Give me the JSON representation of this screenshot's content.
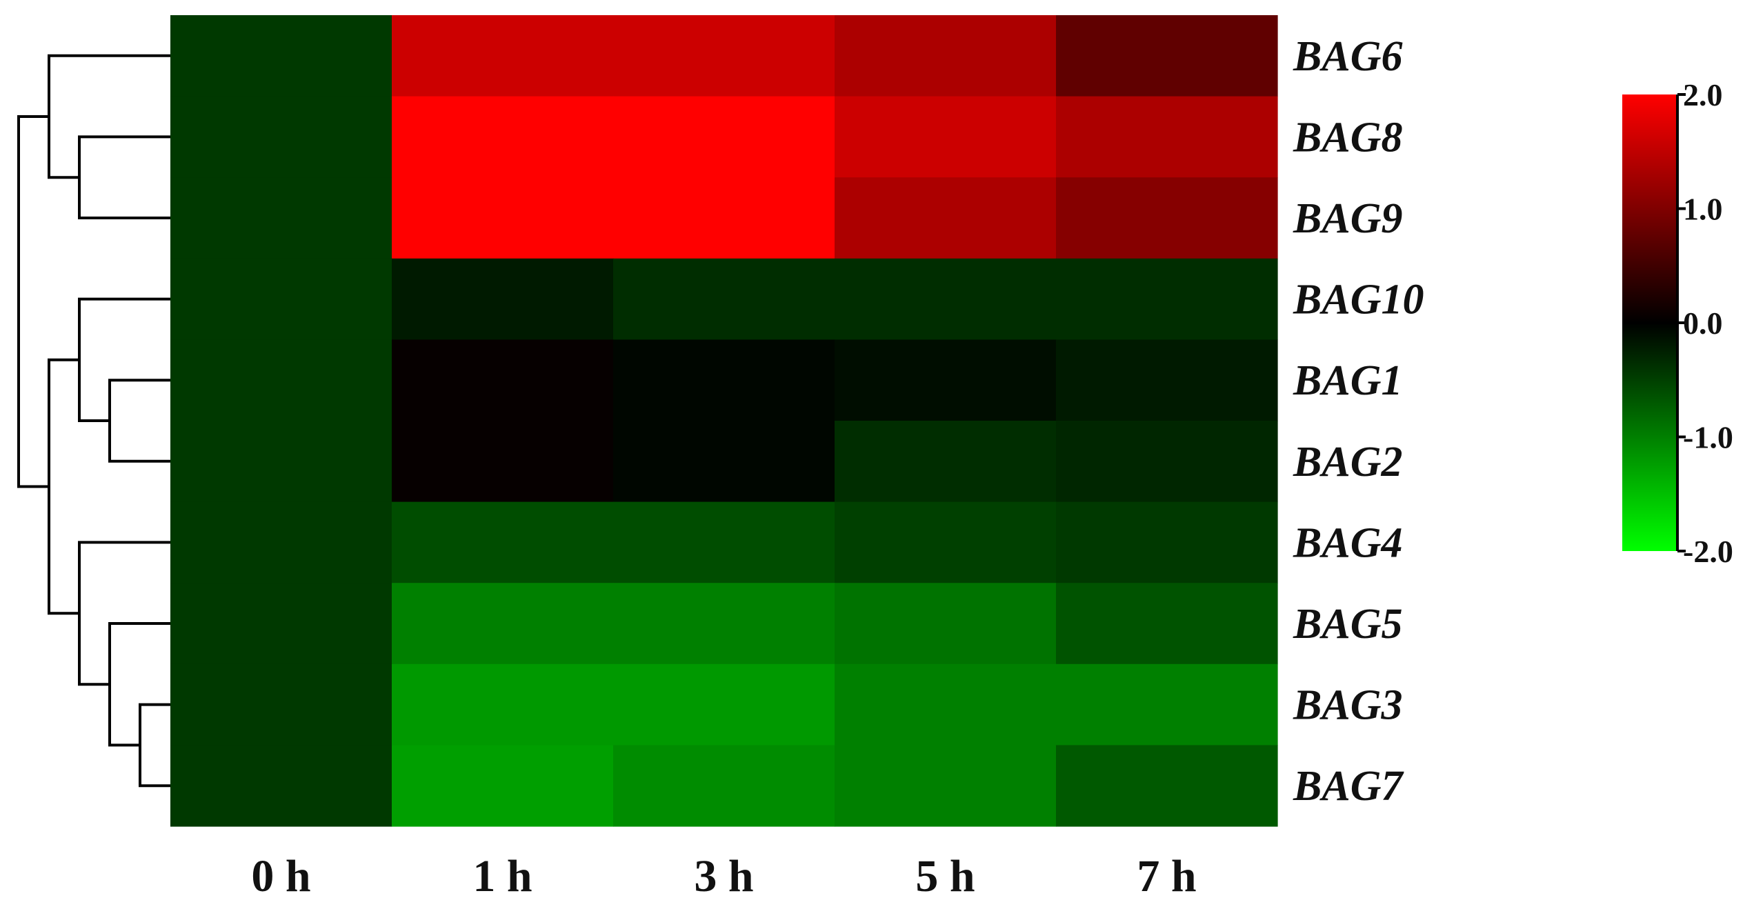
{
  "chart_data": {
    "type": "heatmap",
    "title": "",
    "xlabel": "",
    "ylabel": "",
    "columns": [
      "0 h",
      "1 h",
      "3 h",
      "5 h",
      "7 h"
    ],
    "rows": [
      "BAG6",
      "BAG8",
      "BAG9",
      "BAG10",
      "BAG1",
      "BAG2",
      "BAG4",
      "BAG5",
      "BAG3",
      "BAG7"
    ],
    "values": [
      [
        -0.45,
        1.6,
        1.6,
        1.35,
        0.75
      ],
      [
        -0.45,
        2.0,
        2.0,
        1.6,
        1.35
      ],
      [
        -0.45,
        2.0,
        2.0,
        1.35,
        1.05
      ],
      [
        -0.45,
        -0.2,
        -0.35,
        -0.35,
        -0.35
      ],
      [
        -0.45,
        0.05,
        -0.05,
        -0.1,
        -0.2
      ],
      [
        -0.45,
        0.05,
        -0.05,
        -0.35,
        -0.3
      ],
      [
        -0.45,
        -0.6,
        -0.6,
        -0.5,
        -0.45
      ],
      [
        -0.45,
        -1.0,
        -1.0,
        -0.9,
        -0.65
      ],
      [
        -0.45,
        -1.2,
        -1.2,
        -1.0,
        -1.0
      ],
      [
        -0.45,
        -1.25,
        -1.1,
        -1.0,
        -0.7
      ]
    ],
    "row_dendrogram": {
      "leaves": [
        "BAG6",
        "BAG8",
        "BAG9",
        "BAG10",
        "BAG1",
        "BAG2",
        "BAG4",
        "BAG5",
        "BAG3",
        "BAG7"
      ],
      "merges": [
        {
          "left": "BAG8",
          "right": "BAG9",
          "level": 3
        },
        {
          "left": "BAG6",
          "right": "m0",
          "level": 4
        },
        {
          "left": "BAG1",
          "right": "BAG2",
          "level": 2
        },
        {
          "left": "BAG10",
          "right": "m2",
          "level": 3
        },
        {
          "left": "BAG3",
          "right": "BAG7",
          "level": 1
        },
        {
          "left": "BAG5",
          "right": "m4",
          "level": 2
        },
        {
          "left": "BAG4",
          "right": "m5",
          "level": 3
        },
        {
          "left": "m3",
          "right": "m6",
          "level": 4
        },
        {
          "left": "m1",
          "right": "m7",
          "level": 5
        }
      ]
    },
    "color_scale": {
      "min": -2.0,
      "max": 2.0,
      "min_color": "#00ff00",
      "mid_color": "#000000",
      "max_color": "#ff0000",
      "ticks": [
        "2.0",
        "1.0",
        "0.0",
        "-1.0",
        "-2.0"
      ]
    },
    "legend_position": "right"
  }
}
